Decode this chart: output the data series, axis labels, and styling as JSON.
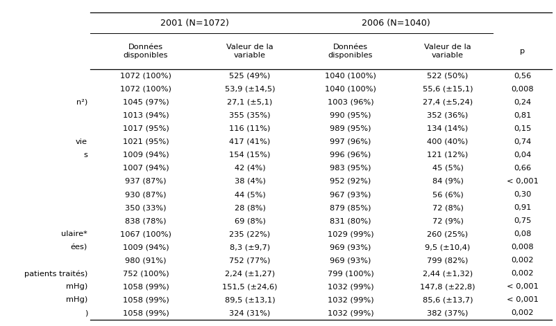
{
  "header1": "2001 (N=1072)",
  "header2": "2006 (N=1040)",
  "col_headers": [
    "Données\ndisponibles",
    "Valeur de la\nvariable",
    "Données\ndisponibles",
    "Valeur de la\nvariable",
    "p"
  ],
  "row_labels": [
    "",
    "",
    "n²)",
    "",
    "",
    "vie",
    "s",
    "",
    "",
    "",
    "",
    "",
    "ulaire*",
    "ées)",
    "",
    "patients traités)",
    "mHg)",
    "mHg)",
    ")"
  ],
  "data": [
    [
      "1072 (100%)",
      "525 (49%)",
      "1040 (100%)",
      "522 (50%)",
      "0,56"
    ],
    [
      "1072 (100%)",
      "53,9 (±14,5)",
      "1040 (100%)",
      "55,6 (±15,1)",
      "0,008"
    ],
    [
      "1045 (97%)",
      "27,1 (±5,1)",
      "1003 (96%)",
      "27,4 (±5,24)",
      "0,24"
    ],
    [
      "1013 (94%)",
      "355 (35%)",
      "990 (95%)",
      "352 (36%)",
      "0,81"
    ],
    [
      "1017 (95%)",
      "116 (11%)",
      "989 (95%)",
      "134 (14%)",
      "0,15"
    ],
    [
      "1021 (95%)",
      "417 (41%)",
      "997 (96%)",
      "400 (40%)",
      "0,74"
    ],
    [
      "1009 (94%)",
      "154 (15%)",
      "996 (96%)",
      "121 (12%)",
      "0,04"
    ],
    [
      "1007 (94%)",
      "42 (4%)",
      "983 (95%)",
      "45 (5%)",
      "0,66"
    ],
    [
      "937 (87%)",
      "38 (4%)",
      "952 (92%)",
      "84 (9%)",
      "< 0,001"
    ],
    [
      "930 (87%)",
      "44 (5%)",
      "967 (93%)",
      "56 (6%)",
      "0,30"
    ],
    [
      "350 (33%)",
      "28 (8%)",
      "879 (85%)",
      "72 (8%)",
      "0,91"
    ],
    [
      "838 (78%)",
      "69 (8%)",
      "831 (80%)",
      "72 (9%)",
      "0,75"
    ],
    [
      "1067 (100%)",
      "235 (22%)",
      "1029 (99%)",
      "260 (25%)",
      "0,08"
    ],
    [
      "1009 (94%)",
      "8,3 (±9,7)",
      "969 (93%)",
      "9,5 (±10,4)",
      "0,008"
    ],
    [
      "980 (91%)",
      "752 (77%)",
      "969 (93%)",
      "799 (82%)",
      "0,002"
    ],
    [
      "752 (100%)",
      "2,24 (±1,27)",
      "799 (100%)",
      "2,44 (±1,32)",
      "0,002"
    ],
    [
      "1058 (99%)",
      "151,5 (±24,6)",
      "1032 (99%)",
      "147,8 (±22,8)",
      "< 0,001"
    ],
    [
      "1058 (99%)",
      "89,5 (±13,1)",
      "1032 (99%)",
      "85,6 (±13,7)",
      "< 0,001"
    ],
    [
      "1058 (99%)",
      "324 (31%)",
      "1032 (99%)",
      "382 (37%)",
      "0,002"
    ]
  ],
  "bg_color": "#ffffff",
  "text_color": "#000000",
  "line_color": "#000000",
  "font_size": 8.2,
  "header_font_size": 9.2
}
